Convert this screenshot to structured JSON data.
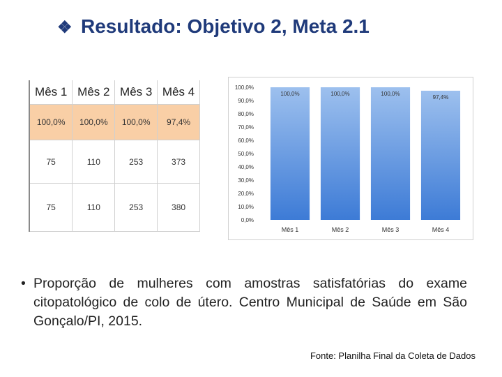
{
  "title": {
    "bullet": "❖",
    "text": "Resultado: Objetivo 2, Meta 2.1"
  },
  "table": {
    "headers": [
      "Mês 1",
      "Mês 2",
      "Mês 3",
      "Mês 4"
    ],
    "rows": [
      [
        "100,0%",
        "100,0%",
        "100,0%",
        "97,4%"
      ],
      [
        "75",
        "110",
        "253",
        "373"
      ],
      [
        "75",
        "110",
        "253",
        "380"
      ]
    ],
    "highlight_color": "#f9cfa6"
  },
  "chart_data": {
    "type": "bar",
    "categories": [
      "Mês 1",
      "Mês 2",
      "Mês 3",
      "Mês 4"
    ],
    "values": [
      100.0,
      100.0,
      100.0,
      97.4
    ],
    "data_labels": [
      "100,0%",
      "100,0%",
      "100,0%",
      "97,4%"
    ],
    "yticks": [
      "0,0%",
      "10,0%",
      "20,0%",
      "30,0%",
      "40,0%",
      "50,0%",
      "60,0%",
      "70,0%",
      "80,0%",
      "90,0%",
      "100,0%"
    ],
    "ylim": [
      0,
      100
    ],
    "grid": false,
    "bar_color_top": "#9dc0ee",
    "bar_color_bottom": "#3d7bd6"
  },
  "description": {
    "bullet": "•",
    "text": "Proporção de mulheres com amostras satisfatórias do exame citopatológico de colo de útero. Centro Municipal de Saúde em São Gonçalo/PI, 2015."
  },
  "source": "Fonte: Planilha Final da Coleta de Dados"
}
